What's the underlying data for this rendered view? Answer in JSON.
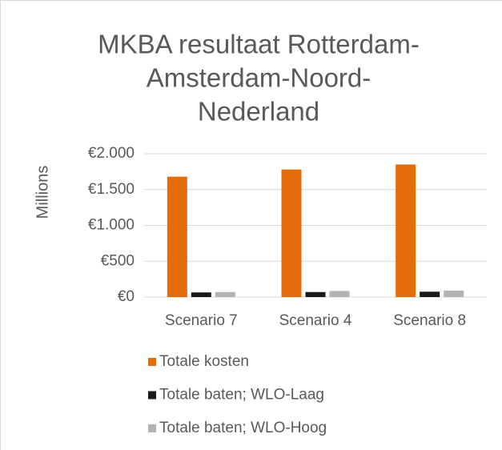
{
  "chart_data": {
    "type": "bar",
    "title": [
      "MKBA resultaat Rotterdam-",
      "Amsterdam-Noord-",
      "Nederland"
    ],
    "y_label": "Millions",
    "categories": [
      "Scenario 7",
      "Scenario 4",
      "Scenario 8"
    ],
    "series": [
      {
        "name": "Totale kosten",
        "color": "#e46c0a",
        "values": [
          1680,
          1780,
          1850
        ]
      },
      {
        "name": "Totale baten; WLO-Laag",
        "color": "#1a1a1a",
        "values": [
          65,
          70,
          75
        ]
      },
      {
        "name": "Totale baten; WLO-Hoog",
        "color": "#b3b3b3",
        "values": [
          70,
          85,
          90
        ]
      }
    ],
    "ylim": [
      0,
      2000
    ],
    "yticks": [
      {
        "value": 0,
        "label": "€0"
      },
      {
        "value": 500,
        "label": "€500"
      },
      {
        "value": 1000,
        "label": "€1.000"
      },
      {
        "value": 1500,
        "label": "€1.500"
      },
      {
        "value": 2000,
        "label": "€2.000"
      }
    ],
    "grid": true,
    "legend": "bottom"
  }
}
